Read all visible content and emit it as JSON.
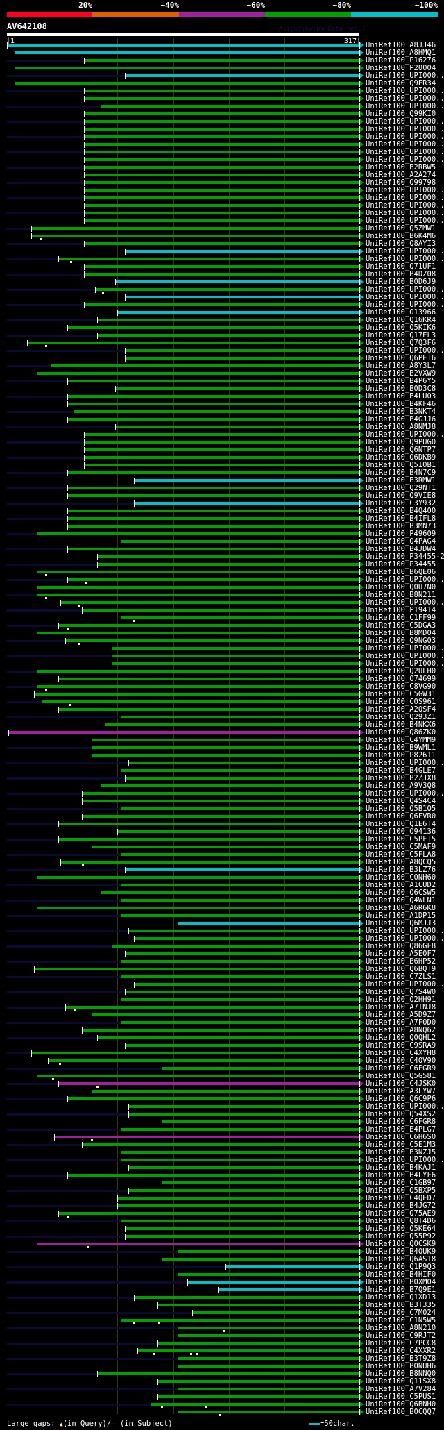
{
  "header": {
    "scale_labels": [
      "20%",
      "~40%",
      "~60%",
      "~80%",
      "~100%"
    ],
    "scale_colors": [
      "#ff0020",
      "#e06000",
      "#a020a0",
      "#00a000",
      "#00c0c8"
    ],
    "query_id": "AV642108",
    "version": "AlignView.pm Beta rel.7",
    "ruler_start": "|1",
    "ruler_end": "317|"
  },
  "query_length": 317,
  "grid_every": 50,
  "colors": {
    "g": "#00a000",
    "c": "#00c0c8",
    "m": "#a020a0",
    "navy": "#0a0a32"
  },
  "rows": [
    [
      "UniRef100_A8JJ46",
      1,
      "c",
      []
    ],
    [
      "UniRef100_A8HMQ1",
      8,
      "c",
      []
    ],
    [
      "UniRef100_P16276",
      70,
      "g",
      []
    ],
    [
      "UniRef100_P20004",
      8,
      "g",
      []
    ],
    [
      "UniRef100_UPI000..",
      107,
      "c",
      []
    ],
    [
      "UniRef100_Q9ER34",
      8,
      "g",
      []
    ],
    [
      "UniRef100_UPI000..",
      70,
      "g",
      []
    ],
    [
      "UniRef100_UPI000..",
      70,
      "g",
      []
    ],
    [
      "UniRef100_UPI000..",
      85,
      "g",
      []
    ],
    [
      "UniRef100_Q99KI0",
      70,
      "g",
      []
    ],
    [
      "UniRef100_UPI000..",
      70,
      "g",
      []
    ],
    [
      "UniRef100_UPI000..",
      70,
      "g",
      []
    ],
    [
      "UniRef100_UPI000..",
      70,
      "g",
      []
    ],
    [
      "UniRef100_UPI000..",
      70,
      "g",
      []
    ],
    [
      "UniRef100_UPI000..",
      70,
      "g",
      []
    ],
    [
      "UniRef100_UPI000..",
      70,
      "g",
      []
    ],
    [
      "UniRef100_B2RBW5",
      70,
      "g",
      []
    ],
    [
      "UniRef100_A2A274",
      70,
      "g",
      []
    ],
    [
      "UniRef100_Q99798",
      70,
      "g",
      []
    ],
    [
      "UniRef100_UPI000..",
      70,
      "g",
      []
    ],
    [
      "UniRef100_UPI000..",
      70,
      "g",
      []
    ],
    [
      "UniRef100_UPI000..",
      70,
      "g",
      []
    ],
    [
      "UniRef100_UPI000..",
      70,
      "g",
      []
    ],
    [
      "UniRef100_UPI000..",
      70,
      "g",
      []
    ],
    [
      "UniRef100_Q5ZMW1",
      23,
      "g",
      []
    ],
    [
      "UniRef100_B6K4M6",
      23,
      "g",
      [
        31
      ]
    ],
    [
      "UniRef100_Q8AYI3",
      70,
      "g",
      []
    ],
    [
      "UniRef100_UPI000..",
      107,
      "c",
      []
    ],
    [
      "UniRef100_UPI000..",
      47,
      "g",
      [
        58
      ]
    ],
    [
      "UniRef100_Q71UF1",
      70,
      "g",
      []
    ],
    [
      "UniRef100_B4DZ08",
      70,
      "g",
      []
    ],
    [
      "UniRef100_B0D6J9",
      98,
      "c",
      []
    ],
    [
      "UniRef100_UPI000..",
      80,
      "g",
      [
        87
      ]
    ],
    [
      "UniRef100_UPI000..",
      107,
      "c",
      []
    ],
    [
      "UniRef100_UPI000..",
      70,
      "g",
      []
    ],
    [
      "UniRef100_O13966",
      100,
      "c",
      []
    ],
    [
      "UniRef100_Q16KR4",
      82,
      "g",
      []
    ],
    [
      "UniRef100_Q5KIK6",
      55,
      "g",
      []
    ],
    [
      "UniRef100_Q17EL3",
      82,
      "g",
      []
    ],
    [
      "UniRef100_Q7Q3F6",
      19,
      "g",
      [
        36
      ]
    ],
    [
      "UniRef100_UPI000..",
      107,
      "g",
      []
    ],
    [
      "UniRef100_Q6PEI6",
      107,
      "g",
      []
    ],
    [
      "UniRef100_A8Y3L7",
      40,
      "g",
      []
    ],
    [
      "UniRef100_B2VXW9",
      28,
      "g",
      []
    ],
    [
      "UniRef100_B4P6Y5",
      55,
      "g",
      []
    ],
    [
      "UniRef100_B0D3C8",
      98,
      "g",
      []
    ],
    [
      "UniRef100_B4LU03",
      55,
      "g",
      []
    ],
    [
      "UniRef100_B4KF46",
      55,
      "g",
      []
    ],
    [
      "UniRef100_B3NKT4",
      61,
      "g",
      []
    ],
    [
      "UniRef100_B4GJJ6",
      55,
      "g",
      []
    ],
    [
      "UniRef100_A8NMJ8",
      98,
      "g",
      []
    ],
    [
      "UniRef100_UPI000..",
      70,
      "g",
      []
    ],
    [
      "UniRef100_Q9PUG0",
      70,
      "g",
      []
    ],
    [
      "UniRef100_Q6NTP7",
      70,
      "g",
      []
    ],
    [
      "UniRef100_Q6DKB9",
      70,
      "g",
      []
    ],
    [
      "UniRef100_Q5I0B1",
      70,
      "g",
      []
    ],
    [
      "UniRef100_B4N7C9",
      55,
      "g",
      []
    ],
    [
      "UniRef100_B3RMW1",
      115,
      "c",
      []
    ],
    [
      "UniRef100_Q29NT1",
      55,
      "g",
      []
    ],
    [
      "UniRef100_Q9VIE8",
      55,
      "g",
      []
    ],
    [
      "UniRef100_C3Y932",
      115,
      "c",
      []
    ],
    [
      "UniRef100_B4Q400",
      55,
      "g",
      []
    ],
    [
      "UniRef100_B4IFL8",
      55,
      "g",
      []
    ],
    [
      "UniRef100_B3MN73",
      55,
      "g",
      []
    ],
    [
      "UniRef100_P49609",
      28,
      "g",
      []
    ],
    [
      "UniRef100_Q4PAG4",
      103,
      "g",
      []
    ],
    [
      "UniRef100_B4JDW4",
      55,
      "g",
      []
    ],
    [
      "UniRef100_P34455-2",
      82,
      "g",
      []
    ],
    [
      "UniRef100_P34455",
      82,
      "g",
      []
    ],
    [
      "UniRef100_B6QE06",
      28,
      "g",
      [
        36
      ]
    ],
    [
      "UniRef100_UPI000..",
      55,
      "g",
      [
        71
      ]
    ],
    [
      "UniRef100_Q0U7N0",
      28,
      "g",
      []
    ],
    [
      "UniRef100_B8N211",
      28,
      "g",
      [
        36
      ]
    ],
    [
      "UniRef100_UPI000..",
      49,
      "g",
      [
        65
      ]
    ],
    [
      "UniRef100_P19414",
      68,
      "g",
      []
    ],
    [
      "UniRef100_C1FF99",
      103,
      "g",
      [
        115
      ]
    ],
    [
      "UniRef100_C5DGA3",
      47,
      "g",
      [
        55
      ]
    ],
    [
      "UniRef100_B8MD04",
      28,
      "g",
      []
    ],
    [
      "UniRef100_Q9NG03",
      53,
      "g",
      [
        65
      ]
    ],
    [
      "UniRef100_UPI000..",
      95,
      "g",
      []
    ],
    [
      "UniRef100_UPI000..",
      95,
      "g",
      []
    ],
    [
      "UniRef100_UPI000..",
      95,
      "g",
      []
    ],
    [
      "UniRef100_Q2ULH0",
      28,
      "g",
      []
    ],
    [
      "UniRef100_O74699",
      47,
      "g",
      []
    ],
    [
      "UniRef100_C8VG90",
      28,
      "g",
      [
        36
      ]
    ],
    [
      "UniRef100_C5GW31",
      25,
      "g",
      []
    ],
    [
      "UniRef100_C0S961",
      32,
      "g",
      [
        57
      ]
    ],
    [
      "UniRef100_A2QSF4",
      47,
      "g",
      []
    ],
    [
      "UniRef100_Q293Z1",
      103,
      "g",
      []
    ],
    [
      "UniRef100_B4NKX6",
      89,
      "g",
      []
    ],
    [
      "UniRef100_Q86ZK0",
      2,
      "m",
      []
    ],
    [
      "UniRef100_C4YMM9",
      77,
      "g",
      []
    ],
    [
      "UniRef100_B9WML1",
      77,
      "g",
      []
    ],
    [
      "UniRef100_P82611",
      77,
      "g",
      []
    ],
    [
      "UniRef100_UPI000..",
      110,
      "g",
      []
    ],
    [
      "UniRef100_B4GLE7",
      103,
      "g",
      []
    ],
    [
      "UniRef100_B2ZJX8",
      107,
      "g",
      []
    ],
    [
      "UniRef100_A9V3Q8",
      85,
      "g",
      []
    ],
    [
      "UniRef100_UPI000..",
      68,
      "g",
      []
    ],
    [
      "UniRef100_Q4S4C4",
      68,
      "g",
      []
    ],
    [
      "UniRef100_Q5B1Q5",
      103,
      "g",
      []
    ],
    [
      "UniRef100_Q6FVR0",
      68,
      "g",
      []
    ],
    [
      "UniRef100_Q1E6T4",
      47,
      "g",
      []
    ],
    [
      "UniRef100_O94136",
      100,
      "g",
      []
    ],
    [
      "UniRef100_C5PFT5",
      47,
      "g",
      []
    ],
    [
      "UniRef100_C5MAF9",
      77,
      "g",
      []
    ],
    [
      "UniRef100_C5FLA8",
      103,
      "g",
      []
    ],
    [
      "UniRef100_A8QCQ5",
      49,
      "g",
      [
        69
      ]
    ],
    [
      "UniRef100_B3LZ76",
      107,
      "c",
      []
    ],
    [
      "UniRef100_C0NH60",
      28,
      "g",
      []
    ],
    [
      "UniRef100_A1CUD2",
      103,
      "g",
      []
    ],
    [
      "UniRef100_Q6CSW5",
      85,
      "g",
      []
    ],
    [
      "UniRef100_Q4WLN1",
      103,
      "g",
      []
    ],
    [
      "UniRef100_A6R6K8",
      28,
      "g",
      []
    ],
    [
      "UniRef100_A1DP15",
      103,
      "g",
      []
    ],
    [
      "UniRef100_Q6MJJ3",
      154,
      "c",
      []
    ],
    [
      "UniRef100_UPI000..",
      110,
      "g",
      []
    ],
    [
      "UniRef100_UPI000..",
      115,
      "g",
      []
    ],
    [
      "UniRef100_Q86GF8",
      95,
      "g",
      []
    ],
    [
      "UniRef100_A5E0F7",
      107,
      "g",
      []
    ],
    [
      "UniRef100_B6HP52",
      103,
      "g",
      []
    ],
    [
      "UniRef100_Q6BQT9",
      25,
      "g",
      []
    ],
    [
      "UniRef100_C7ZLS1",
      103,
      "g",
      []
    ],
    [
      "UniRef100_UPI000..",
      115,
      "g",
      []
    ],
    [
      "UniRef100_Q7S4W0",
      107,
      "g",
      []
    ],
    [
      "UniRef100_Q2HH91",
      103,
      "g",
      []
    ],
    [
      "UniRef100_A7TNJ8",
      53,
      "g",
      [
        62
      ]
    ],
    [
      "UniRef100_A5D9Z7",
      77,
      "g",
      []
    ],
    [
      "UniRef100_A7F0D0",
      103,
      "g",
      []
    ],
    [
      "UniRef100_A8NQ62",
      68,
      "g",
      []
    ],
    [
      "UniRef100_Q0QHL2",
      82,
      "g",
      []
    ],
    [
      "UniRef100_C9SRA9",
      107,
      "g",
      []
    ],
    [
      "UniRef100_C4XYH8",
      23,
      "g",
      []
    ],
    [
      "UniRef100_C4QV90",
      38,
      "g",
      [
        48
      ]
    ],
    [
      "UniRef100_C6FGR9",
      140,
      "g",
      []
    ],
    [
      "UniRef100_Q5G581",
      28,
      "g",
      [
        42
      ]
    ],
    [
      "UniRef100_C4JSK0",
      47,
      "m",
      [
        82
      ]
    ],
    [
      "UniRef100_A3LYW7",
      77,
      "g",
      []
    ],
    [
      "UniRef100_Q6C9P6",
      55,
      "g",
      []
    ],
    [
      "UniRef100_UPI000..",
      110,
      "g",
      []
    ],
    [
      "UniRef100_Q54XS2",
      110,
      "g",
      []
    ],
    [
      "UniRef100_C6FGR8",
      140,
      "g",
      []
    ],
    [
      "UniRef100_B4PLG7",
      103,
      "g",
      []
    ],
    [
      "UniRef100_C6H6S0",
      43,
      "m",
      [
        77
      ]
    ],
    [
      "UniRef100_C5E1M3",
      68,
      "g",
      []
    ],
    [
      "UniRef100_B3NZJ5",
      103,
      "g",
      []
    ],
    [
      "UniRef100_UPI000..",
      103,
      "g",
      []
    ],
    [
      "UniRef100_B4KAJ1",
      110,
      "g",
      []
    ],
    [
      "UniRef100_B4LYF6",
      55,
      "g",
      []
    ],
    [
      "UniRef100_C1GB97",
      140,
      "g",
      []
    ],
    [
      "UniRef100_Q5BXP5",
      110,
      "g",
      []
    ],
    [
      "UniRef100_C4QED7",
      100,
      "g",
      []
    ],
    [
      "UniRef100_B4JG72",
      100,
      "g",
      []
    ],
    [
      "UniRef100_Q75AE9",
      47,
      "g",
      [
        55
      ]
    ],
    [
      "UniRef100_Q8T4D6",
      103,
      "g",
      []
    ],
    [
      "UniRef100_Q5KE64",
      107,
      "g",
      []
    ],
    [
      "UniRef100_Q55P92",
      107,
      "g",
      []
    ],
    [
      "UniRef100_Q0CSK9",
      28,
      "m",
      [
        74
      ]
    ],
    [
      "UniRef100_B4QUK9",
      154,
      "g",
      []
    ],
    [
      "UniRef100_Q6AS18",
      140,
      "g",
      []
    ],
    [
      "UniRef100_Q1P9Q3",
      197,
      "c",
      []
    ],
    [
      "UniRef100_B4HIF0",
      154,
      "g",
      []
    ],
    [
      "UniRef100_B0XM04",
      163,
      "c",
      []
    ],
    [
      "UniRef100_B7Q9E1",
      190,
      "c",
      []
    ],
    [
      "UniRef100_Q1XD13",
      115,
      "g",
      []
    ],
    [
      "UniRef100_B3T335",
      136,
      "g",
      []
    ],
    [
      "UniRef100_C7M024",
      167,
      "g",
      []
    ],
    [
      "UniRef100_C1N5W5",
      103,
      "g",
      [
        115,
        137
      ]
    ],
    [
      "UniRef100_A8N210",
      154,
      "g",
      [
        196
      ]
    ],
    [
      "UniRef100_C9RJT2",
      154,
      "g",
      []
    ],
    [
      "UniRef100_C7PCC8",
      136,
      "g",
      []
    ],
    [
      "UniRef100_C4XXR2",
      118,
      "g",
      [
        132,
        166,
        171
      ]
    ],
    [
      "UniRef100_B3T9Z8",
      154,
      "g",
      []
    ],
    [
      "UniRef100_B0NUH6",
      154,
      "g",
      []
    ],
    [
      "UniRef100_B8NNQ0",
      82,
      "g",
      []
    ],
    [
      "UniRef100_Q11SX8",
      136,
      "g",
      []
    ],
    [
      "UniRef100_A7V284",
      154,
      "g",
      []
    ],
    [
      "UniRef100_C5PUS1",
      136,
      "g",
      []
    ],
    [
      "UniRef100_Q6BNH0",
      130,
      "g",
      [
        140,
        179
      ]
    ],
    [
      "UniRef100_B0CQQ7",
      154,
      "g",
      [
        192
      ]
    ]
  ],
  "footer": {
    "gaps_label": "Large gaps:",
    "query_gap_icon": "▲",
    "query_gap_text": "(in Query)/",
    "subject_gap_icon": "–",
    "subject_gap_text": " (in Subject)",
    "scale_text": "=50char."
  }
}
